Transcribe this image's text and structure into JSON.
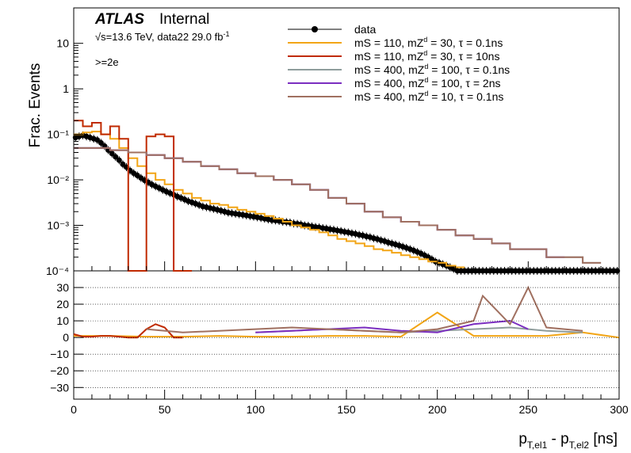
{
  "header": {
    "atlas": "ATLAS",
    "internal": "Internal",
    "energy_line": "√s=13.6 TeV, data22 29.0 fb",
    "energy_sup": "-1",
    "selection": ">=2e"
  },
  "chart_data": [
    {
      "panel": "main",
      "type": "line",
      "ylabel": "Frac. Events",
      "yscale": "log",
      "ylim": [
        0.0001,
        60
      ],
      "xlim": [
        0,
        300
      ],
      "y_ticks": [
        "10⁻⁴",
        "10⁻³",
        "10⁻²",
        "10⁻¹",
        "1",
        "10"
      ],
      "legend_position": "top-right",
      "series": [
        {
          "name": "data",
          "color": "#000000",
          "style": "markers",
          "x": [
            1,
            3,
            5,
            7,
            9,
            11,
            13,
            15,
            17,
            19,
            21,
            23,
            25,
            27,
            29,
            31,
            33,
            35,
            37,
            39,
            41,
            43,
            45,
            47,
            49,
            51,
            53,
            55,
            57,
            59,
            61,
            63,
            65,
            67,
            69,
            71,
            73,
            75,
            77,
            79,
            81,
            83,
            85,
            87,
            89,
            91,
            93,
            95,
            97,
            99,
            101,
            103,
            105,
            107,
            109,
            111,
            113,
            115,
            117,
            119,
            121,
            123,
            125,
            127,
            129,
            131,
            133,
            135,
            137,
            139,
            141,
            143,
            145,
            147,
            149,
            151,
            153,
            155,
            157,
            159,
            161,
            163,
            165,
            167,
            169,
            171,
            173,
            175,
            177,
            179,
            181,
            183,
            185,
            187,
            189,
            191,
            193,
            195,
            197,
            199,
            201,
            203,
            205,
            207,
            209,
            211,
            213,
            215,
            217,
            219,
            221,
            223,
            225,
            227,
            229,
            231,
            233,
            235,
            237,
            239,
            241,
            243,
            245,
            247,
            249,
            251,
            253,
            255,
            257,
            259,
            261,
            263,
            265,
            267,
            269,
            271,
            273,
            275,
            277,
            279,
            281,
            283,
            285,
            287,
            289,
            291,
            293,
            295,
            297,
            299
          ],
          "y": [
            0.085,
            0.09,
            0.095,
            0.09,
            0.085,
            0.08,
            0.075,
            0.065,
            0.055,
            0.045,
            0.038,
            0.032,
            0.027,
            0.022,
            0.019,
            0.016,
            0.014,
            0.0125,
            0.011,
            0.0098,
            0.0088,
            0.0079,
            0.0072,
            0.0066,
            0.006,
            0.0055,
            0.0051,
            0.0047,
            0.0043,
            0.004,
            0.0037,
            0.0034,
            0.0032,
            0.003,
            0.0028,
            0.0026,
            0.0025,
            0.0024,
            0.0023,
            0.0022,
            0.0021,
            0.002,
            0.0019,
            0.00185,
            0.0018,
            0.00175,
            0.0017,
            0.00165,
            0.0016,
            0.00155,
            0.0015,
            0.00145,
            0.0014,
            0.00135,
            0.0013,
            0.00128,
            0.00125,
            0.0012,
            0.00118,
            0.00115,
            0.0011,
            0.00108,
            0.00105,
            0.001,
            0.00098,
            0.00095,
            0.00092,
            0.0009,
            0.00087,
            0.00085,
            0.00082,
            0.0008,
            0.00077,
            0.00075,
            0.00072,
            0.0007,
            0.00067,
            0.00065,
            0.00062,
            0.0006,
            0.00057,
            0.00055,
            0.00052,
            0.0005,
            0.00047,
            0.00045,
            0.00042,
            0.0004,
            0.00038,
            0.00036,
            0.00034,
            0.00032,
            0.0003,
            0.00028,
            0.00026,
            0.00024,
            0.00022,
            0.0002,
            0.00018,
            0.00016,
            0.00015,
            0.00014,
            0.00013,
            0.00012,
            0.00011,
            0.0001,
            0.0001,
            0.0001,
            0.0001,
            0.0001,
            0.0001,
            0.0001,
            0.0001,
            0.0001,
            0.0001,
            0.0001,
            0.0001,
            0.0001,
            0.0001,
            0.0001,
            0.0001,
            0.0001,
            0.0001,
            0.0001,
            0.0001,
            0.0001,
            0.0001,
            0.0001,
            0.0001,
            0.0001,
            0.0001,
            0.0001,
            0.0001,
            0.0001,
            0.0001,
            0.0001,
            0.0001,
            0.0001,
            0.0001,
            0.0001,
            0.0001,
            0.0001,
            0.0001,
            0.0001,
            0.0001,
            0.0001,
            0.0001,
            0.0001,
            0.0001,
            0.0001
          ]
        },
        {
          "name": "mS = 110, mZ_d = 30, τ = 0.1ns",
          "color": "#f2a516",
          "style": "step",
          "x": [
            0,
            5,
            10,
            15,
            20,
            25,
            30,
            35,
            40,
            45,
            50,
            55,
            60,
            65,
            70,
            75,
            80,
            85,
            90,
            95,
            100,
            105,
            110,
            115,
            120,
            125,
            130,
            135,
            140,
            145,
            150,
            155,
            160,
            165,
            170,
            175,
            180,
            185,
            190,
            195,
            200,
            205,
            210
          ],
          "y": [
            0.1,
            0.11,
            0.115,
            0.1,
            0.08,
            0.05,
            0.03,
            0.02,
            0.014,
            0.01,
            0.008,
            0.006,
            0.005,
            0.004,
            0.0035,
            0.003,
            0.0028,
            0.0025,
            0.0022,
            0.002,
            0.0018,
            0.0016,
            0.0014,
            0.0012,
            0.001,
            0.0009,
            0.0008,
            0.0007,
            0.0006,
            0.0005,
            0.00045,
            0.0004,
            0.00035,
            0.0003,
            0.00028,
            0.00025,
            0.00022,
            0.0002,
            0.00018,
            0.00016,
            0.00015,
            0.00013,
            0.00012
          ]
        },
        {
          "name": "mS = 110, mZ_d = 30, τ = 10ns",
          "color": "#c02a00",
          "style": "step",
          "x": [
            0,
            5,
            10,
            15,
            20,
            25,
            30,
            35,
            40,
            45,
            50,
            55,
            60
          ],
          "y": [
            0.2,
            0.15,
            0.18,
            0.1,
            0.15,
            0.08,
            0.0001,
            0.0001,
            0.09,
            0.1,
            0.09,
            0.0001,
            0.0001
          ]
        },
        {
          "name": "mS = 400, mZ_d = 100, τ = 0.1ns",
          "color": "#8f9d9c",
          "style": "step",
          "x": [
            0,
            10,
            20,
            30,
            40,
            50,
            60,
            70,
            80,
            90,
            100,
            110,
            120,
            130,
            140,
            150,
            160,
            170,
            180,
            190,
            200,
            210,
            220,
            230,
            240,
            250,
            260,
            270,
            280
          ],
          "y": [
            0.05,
            0.05,
            0.045,
            0.04,
            0.035,
            0.03,
            0.025,
            0.02,
            0.017,
            0.014,
            0.012,
            0.01,
            0.008,
            0.006,
            0.004,
            0.003,
            0.002,
            0.0015,
            0.0012,
            0.001,
            0.0008,
            0.0006,
            0.0005,
            0.0004,
            0.0003,
            0.0003,
            0.0002,
            0.0002,
            0.00015
          ]
        },
        {
          "name": "mS = 400, mZ_d = 100, τ = 2ns",
          "color": "#7b2ec0",
          "style": "step",
          "x": [
            0,
            10,
            20,
            30,
            40,
            50,
            60,
            70,
            80,
            90,
            100,
            110,
            120,
            130,
            140,
            150,
            160,
            170,
            180,
            190,
            200,
            210,
            220,
            230,
            240,
            250,
            260
          ],
          "y": [
            0.05,
            0.05,
            0.045,
            0.04,
            0.035,
            0.03,
            0.025,
            0.02,
            0.017,
            0.014,
            0.012,
            0.01,
            0.008,
            0.006,
            0.004,
            0.003,
            0.002,
            0.0015,
            0.0012,
            0.001,
            0.0008,
            0.0006,
            0.0005,
            0.0004,
            0.0003,
            0.0003,
            0.0002
          ]
        },
        {
          "name": "mS = 400, mZ_d = 10, τ = 0.1ns",
          "color": "#a07060",
          "style": "step",
          "x": [
            0,
            10,
            20,
            30,
            40,
            50,
            60,
            70,
            80,
            90,
            100,
            110,
            120,
            130,
            140,
            150,
            160,
            170,
            180,
            190,
            200,
            210,
            220,
            230,
            240,
            250,
            260,
            270,
            280
          ],
          "y": [
            0.05,
            0.05,
            0.045,
            0.04,
            0.035,
            0.03,
            0.025,
            0.02,
            0.017,
            0.014,
            0.012,
            0.01,
            0.008,
            0.006,
            0.004,
            0.003,
            0.002,
            0.0015,
            0.0012,
            0.001,
            0.0008,
            0.0006,
            0.0005,
            0.0004,
            0.0003,
            0.0003,
            0.0002,
            0.0002,
            0.00015
          ]
        }
      ]
    },
    {
      "panel": "ratio",
      "type": "line",
      "xlabel_main": "p",
      "xlabel_sub1": "T,el1",
      "xlabel_mid": " - p",
      "xlabel_sub2": "T,el2",
      "xlabel_unit": " [ns]",
      "xlim": [
        0,
        300
      ],
      "ylim": [
        -37,
        40
      ],
      "x_ticks": [
        "0",
        "50",
        "100",
        "150",
        "200",
        "250",
        "300"
      ],
      "y_ticks": [
        "−30",
        "−20",
        "−10",
        "0",
        "10",
        "20",
        "30"
      ],
      "grid": "horizontal dotted",
      "series": [
        {
          "name": "mS = 110, mZ_d = 30, τ = 0.1ns",
          "color": "#f2a516",
          "x": [
            0,
            20,
            40,
            60,
            80,
            100,
            120,
            140,
            160,
            180,
            200,
            220,
            240,
            260,
            280,
            300
          ],
          "y": [
            1,
            1,
            0.5,
            0.5,
            1,
            0.5,
            0.5,
            1,
            1,
            0.5,
            15,
            1,
            1,
            1,
            3,
            0
          ]
        },
        {
          "name": "mS = 110, mZ_d = 30, τ = 10ns",
          "color": "#c02a00",
          "x": [
            0,
            5,
            10,
            15,
            20,
            25,
            30,
            35,
            40,
            45,
            50,
            55,
            60
          ],
          "y": [
            2,
            0.5,
            0.5,
            1,
            1,
            0.5,
            0,
            0,
            5,
            8,
            6,
            0,
            0
          ]
        },
        {
          "name": "mS = 400, mZ_d = 100, τ = 0.1ns",
          "color": "#8f9d9c",
          "x": [
            100,
            120,
            140,
            160,
            180,
            200,
            220,
            240,
            260,
            280
          ],
          "y": [
            3,
            4,
            5,
            4,
            3,
            4,
            5,
            6,
            4,
            3
          ]
        },
        {
          "name": "mS = 400, mZ_d = 100, τ = 2ns",
          "color": "#7b2ec0",
          "x": [
            100,
            120,
            140,
            160,
            180,
            200,
            220,
            240,
            250
          ],
          "y": [
            3,
            4,
            5,
            6,
            4,
            3,
            8,
            10,
            5
          ]
        },
        {
          "name": "mS = 400, mZ_d = 10, τ = 0.1ns",
          "color": "#a07060",
          "x": [
            40,
            60,
            80,
            100,
            120,
            140,
            160,
            180,
            200,
            220,
            225,
            240,
            250,
            260,
            280
          ],
          "y": [
            5,
            3,
            4,
            5,
            6,
            5,
            4,
            3,
            5,
            10,
            25,
            8,
            30,
            6,
            4
          ]
        }
      ]
    }
  ]
}
